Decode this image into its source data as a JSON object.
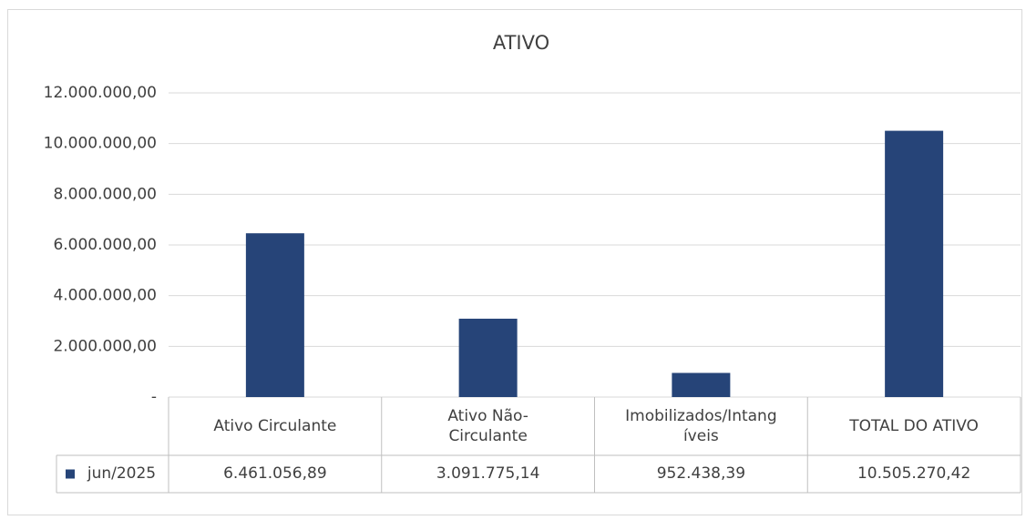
{
  "chart_data": {
    "type": "bar",
    "title": "ATIVO",
    "categories": [
      "Ativo Circulante",
      "Ativo Não-Circulante",
      "Imobilizados/Intangíveis",
      "TOTAL DO ATIVO"
    ],
    "series": [
      {
        "name": "jun/2025",
        "color": "#264478",
        "values": [
          6461056.89,
          3091775.14,
          952438.39,
          10505270.42
        ],
        "value_labels": [
          "6.461.056,89",
          "3.091.775,14",
          "952.438,39",
          "10.505.270,42"
        ]
      }
    ],
    "ylim": [
      0,
      12000000
    ],
    "yticks": [
      {
        "value": 0,
        "label": "-"
      },
      {
        "value": 2000000,
        "label": "2.000.000,00"
      },
      {
        "value": 4000000,
        "label": "4.000.000,00"
      },
      {
        "value": 6000000,
        "label": "6.000.000,00"
      },
      {
        "value": 8000000,
        "label": "8.000.000,00"
      },
      {
        "value": 10000000,
        "label": "10.000.000,00"
      },
      {
        "value": 12000000,
        "label": "12.000.000,00"
      }
    ],
    "grid": true,
    "data_table": true
  }
}
